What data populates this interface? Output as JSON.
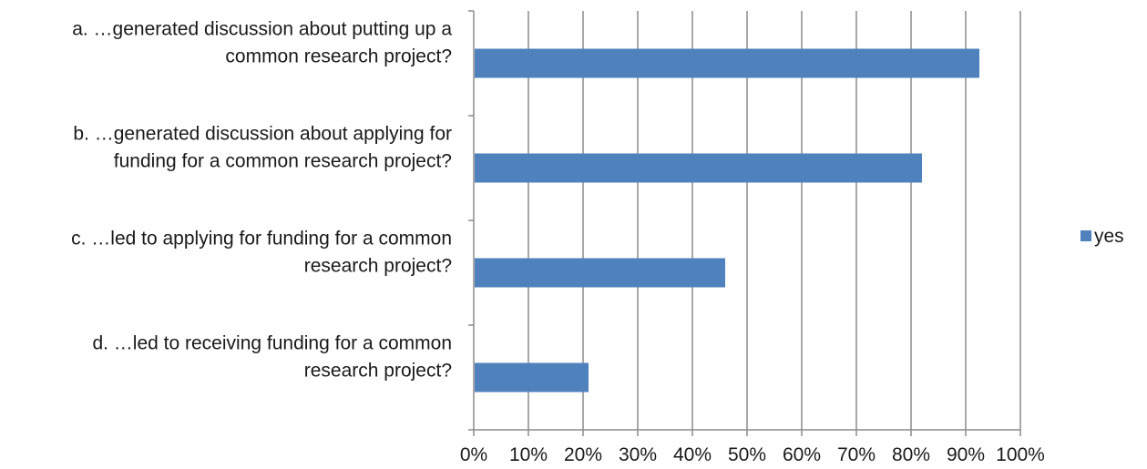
{
  "chart_data": {
    "type": "bar",
    "orientation": "horizontal",
    "categories": [
      [
        "a. …generated discussion about putting up a",
        "common research project?"
      ],
      [
        "b. …generated discussion about applying for",
        "funding for a common research project?"
      ],
      [
        "c. …led to applying for funding for a common",
        "research project?"
      ],
      [
        "d. …led to receiving funding for a common",
        "research project?"
      ]
    ],
    "series": [
      {
        "name": "yes",
        "values": [
          92.5,
          82,
          46,
          21
        ],
        "color": "#4F81BD"
      }
    ],
    "xlim": [
      0,
      100
    ],
    "xticks": [
      "0%",
      "10%",
      "20%",
      "30%",
      "40%",
      "50%",
      "60%",
      "70%",
      "80%",
      "90%",
      "100%"
    ],
    "grid": "vertical",
    "legend": "right"
  }
}
